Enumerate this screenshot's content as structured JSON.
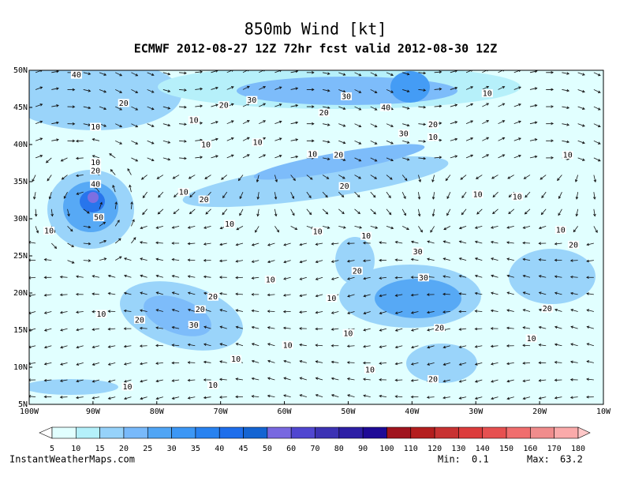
{
  "header": {
    "title": "850mb Wind [kt]",
    "subtitle": "ECMWF 2012-08-27 12Z 72hr fcst valid 2012-08-30 12Z"
  },
  "map": {
    "lonlim": [
      -100,
      -10
    ],
    "latlim": [
      5,
      50
    ],
    "lat_ticks": [
      {
        "value": 50,
        "label": "50N"
      },
      {
        "value": 45,
        "label": "45N"
      },
      {
        "value": 40,
        "label": "40N"
      },
      {
        "value": 35,
        "label": "35N"
      },
      {
        "value": 30,
        "label": "30N"
      },
      {
        "value": 25,
        "label": "25N"
      },
      {
        "value": 20,
        "label": "20N"
      },
      {
        "value": 15,
        "label": "15N"
      },
      {
        "value": 10,
        "label": "10N"
      },
      {
        "value": 5,
        "label": "5N"
      }
    ],
    "lon_ticks": [
      {
        "value": -100,
        "label": "100W"
      },
      {
        "value": -90,
        "label": "90W"
      },
      {
        "value": -80,
        "label": "80W"
      },
      {
        "value": -70,
        "label": "70W"
      },
      {
        "value": -60,
        "label": "60W"
      },
      {
        "value": -50,
        "label": "50W"
      },
      {
        "value": -40,
        "label": "40W"
      },
      {
        "value": -30,
        "label": "30W"
      },
      {
        "value": -20,
        "label": "20W"
      },
      {
        "value": -10,
        "label": "10W"
      }
    ],
    "contour_labels": [
      {
        "lon": -92.6,
        "lat": 49.4,
        "value": 40
      },
      {
        "lon": -85.2,
        "lat": 45.6,
        "value": 20
      },
      {
        "lon": -65.1,
        "lat": 46,
        "value": 30
      },
      {
        "lon": -50.3,
        "lat": 46.5,
        "value": 30
      },
      {
        "lon": -44.1,
        "lat": 45,
        "value": 40
      },
      {
        "lon": -53.8,
        "lat": 44.3,
        "value": 20
      },
      {
        "lon": -36.7,
        "lat": 42.7,
        "value": 20
      },
      {
        "lon": -28.2,
        "lat": 46.9,
        "value": 10
      },
      {
        "lon": -69.5,
        "lat": 45.3,
        "value": 20
      },
      {
        "lon": -74.2,
        "lat": 43.3,
        "value": 10
      },
      {
        "lon": -89.6,
        "lat": 42.4,
        "value": 10
      },
      {
        "lon": -72.3,
        "lat": 40,
        "value": 10
      },
      {
        "lon": -64.2,
        "lat": 40.3,
        "value": 10
      },
      {
        "lon": -41.3,
        "lat": 41.5,
        "value": 30
      },
      {
        "lon": -36.7,
        "lat": 41,
        "value": 10
      },
      {
        "lon": -55.6,
        "lat": 38.7,
        "value": 10
      },
      {
        "lon": -51.5,
        "lat": 38.6,
        "value": 20
      },
      {
        "lon": -15.6,
        "lat": 38.6,
        "value": 10
      },
      {
        "lon": -89.6,
        "lat": 37.6,
        "value": 10
      },
      {
        "lon": -89.6,
        "lat": 36.5,
        "value": 20
      },
      {
        "lon": -89.6,
        "lat": 34.7,
        "value": 40
      },
      {
        "lon": -50.6,
        "lat": 34.4,
        "value": 20
      },
      {
        "lon": -75.8,
        "lat": 33.6,
        "value": 10
      },
      {
        "lon": -72.6,
        "lat": 32.6,
        "value": 20
      },
      {
        "lon": -29.7,
        "lat": 33.3,
        "value": 10
      },
      {
        "lon": -23.5,
        "lat": 33,
        "value": 10
      },
      {
        "lon": -89.1,
        "lat": 30.2,
        "value": 50
      },
      {
        "lon": -96.9,
        "lat": 28.4,
        "value": 10
      },
      {
        "lon": -68.6,
        "lat": 29.3,
        "value": 10
      },
      {
        "lon": -54.8,
        "lat": 28.3,
        "value": 10
      },
      {
        "lon": -47.2,
        "lat": 27.7,
        "value": 10
      },
      {
        "lon": -16.7,
        "lat": 28.5,
        "value": 10
      },
      {
        "lon": -14.7,
        "lat": 26.5,
        "value": 20
      },
      {
        "lon": -39.1,
        "lat": 25.6,
        "value": 30
      },
      {
        "lon": -48.6,
        "lat": 23,
        "value": 20
      },
      {
        "lon": -38.2,
        "lat": 22.1,
        "value": 30
      },
      {
        "lon": -62.2,
        "lat": 21.8,
        "value": 10
      },
      {
        "lon": -71.2,
        "lat": 19.5,
        "value": 20
      },
      {
        "lon": -52.6,
        "lat": 19.3,
        "value": 10
      },
      {
        "lon": -73.2,
        "lat": 17.8,
        "value": 20
      },
      {
        "lon": -88.7,
        "lat": 17.2,
        "value": 10
      },
      {
        "lon": -82.7,
        "lat": 16.4,
        "value": 20
      },
      {
        "lon": -74.2,
        "lat": 15.7,
        "value": 30
      },
      {
        "lon": -35.7,
        "lat": 15.3,
        "value": 20
      },
      {
        "lon": -50,
        "lat": 14.6,
        "value": 10
      },
      {
        "lon": -59.5,
        "lat": 13,
        "value": 10
      },
      {
        "lon": -18.8,
        "lat": 17.9,
        "value": 20
      },
      {
        "lon": -21.3,
        "lat": 13.9,
        "value": 10
      },
      {
        "lon": -67.6,
        "lat": 11.1,
        "value": 10
      },
      {
        "lon": -46.6,
        "lat": 9.7,
        "value": 10
      },
      {
        "lon": -36.7,
        "lat": 8.4,
        "value": 20
      },
      {
        "lon": -84.6,
        "lat": 7.4,
        "value": 10
      },
      {
        "lon": -71.2,
        "lat": 7.6,
        "value": 10
      }
    ]
  },
  "colorbar": {
    "levels": [
      5,
      10,
      15,
      20,
      25,
      30,
      35,
      40,
      45,
      50,
      60,
      70,
      80,
      90,
      100,
      110,
      120,
      130,
      140,
      150,
      160,
      170,
      180
    ],
    "colors": [
      "#ffffff",
      "#e1ffff",
      "#b4f0fa",
      "#96d2fa",
      "#78b9fa",
      "#50a5f5",
      "#3c97f5",
      "#2882f0",
      "#1e6eeb",
      "#1464d2",
      "#7868e0",
      "#5046d0",
      "#3c32b4",
      "#2d1ea5",
      "#1e0a96",
      "#a0141e",
      "#b41e1e",
      "#c83232",
      "#dc3c3c",
      "#e65050",
      "#f06e6e",
      "#f08c8c",
      "#faaaaa",
      "#ffc8c8"
    ]
  },
  "footer": {
    "site": "InstantWeatherMaps.com",
    "min": {
      "label": "Min:",
      "value": 0.1
    },
    "max": {
      "label": "Max:",
      "value": 63.2
    }
  }
}
